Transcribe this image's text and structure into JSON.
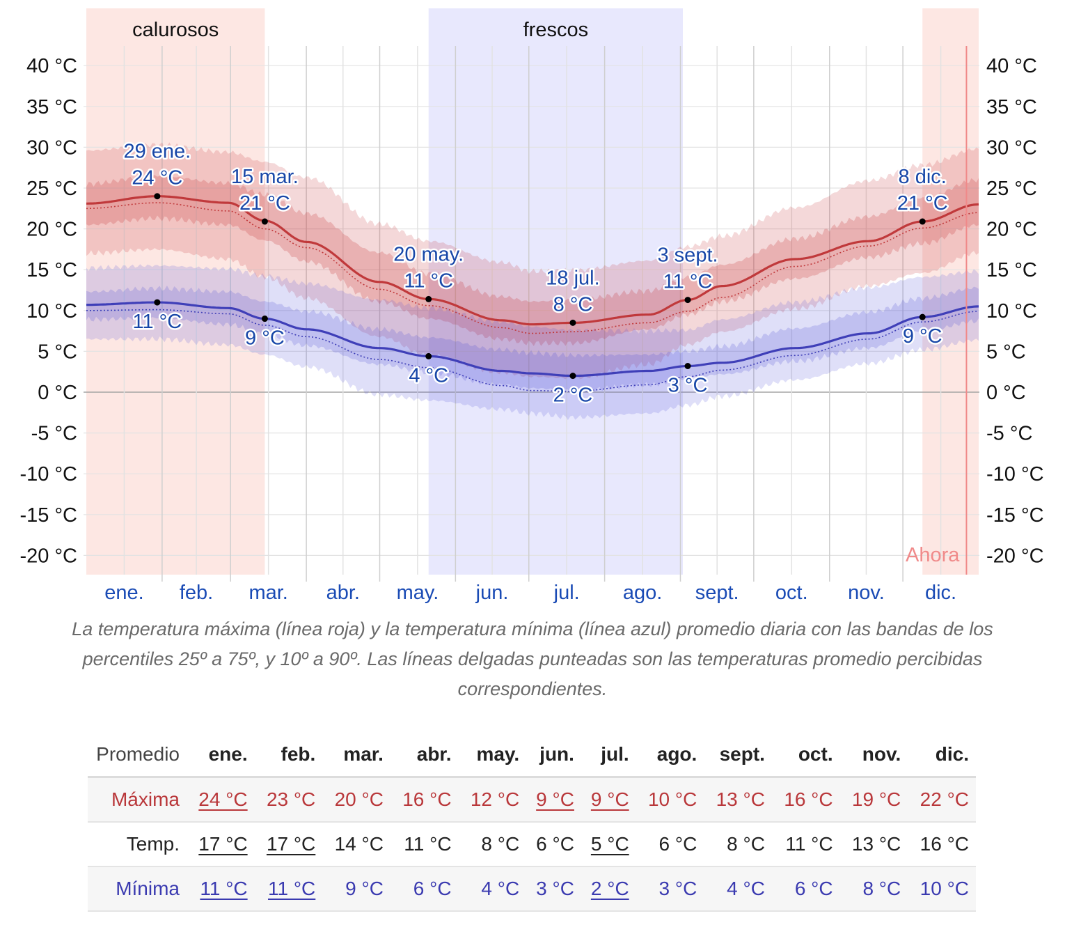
{
  "chart_data": {
    "type": "line",
    "y_axis": {
      "ticks": [
        40,
        35,
        30,
        25,
        20,
        15,
        10,
        5,
        0,
        -5,
        -10,
        -15,
        -20
      ],
      "unit": "°C",
      "range": [
        -22.5,
        40.6
      ]
    },
    "x_axis": {
      "months": [
        "ene.",
        "feb.",
        "mar.",
        "abr.",
        "may.",
        "jun.",
        "jul.",
        "ago.",
        "sept.",
        "oct.",
        "nov.",
        "dic."
      ]
    },
    "seasons": [
      {
        "label": "calurosos",
        "start_day": 0,
        "end_day": 73,
        "color": "#fde7e3"
      },
      {
        "label": "frescos",
        "start_day": 140,
        "end_day": 244,
        "color": "#e8e8fd"
      },
      {
        "label": "",
        "start_day": 342,
        "end_day": 365,
        "color": "#fde7e3"
      }
    ],
    "now": {
      "label": "Ahora",
      "day": 360,
      "color": "#f08a8a"
    },
    "grid": true,
    "series": [
      {
        "name": "máxima",
        "color": "#c0393b",
        "days": [
          0,
          29,
          58,
          73,
          90,
          120,
          140,
          170,
          182,
          199,
          230,
          246,
          260,
          290,
          320,
          342,
          365
        ],
        "values": [
          23.1,
          24,
          23.2,
          21,
          18.4,
          13.5,
          11.4,
          8.8,
          8.3,
          8.5,
          9.5,
          11.3,
          13,
          16.3,
          18.5,
          20.9,
          23.0
        ],
        "p10": [
          17,
          17.5,
          16.3,
          14.1,
          11.5,
          6.8,
          4.5,
          2.4,
          1.9,
          1.7,
          3.4,
          5.8,
          7.4,
          10.2,
          13,
          14.6,
          17.1
        ],
        "p25": [
          20.5,
          21.3,
          20.5,
          18.6,
          16,
          11.1,
          9.0,
          6.5,
          6.0,
          6.0,
          7.7,
          9.5,
          11.1,
          13.9,
          16.5,
          18.2,
          20.5
        ],
        "p75": [
          25.5,
          26.5,
          25.6,
          24.2,
          21.9,
          17.1,
          14.5,
          11.7,
          11.1,
          11.3,
          12.4,
          14.1,
          15.6,
          18.8,
          21.5,
          23.8,
          26
        ],
        "p90": [
          29.6,
          30.3,
          29.4,
          28.2,
          26.3,
          20.6,
          18.5,
          15.9,
          14.8,
          14.9,
          16.1,
          17.8,
          19.1,
          22.6,
          25.9,
          27.8,
          29.8
        ],
        "perceived": [
          22.5,
          23.2,
          22.2,
          20,
          17.7,
          12.6,
          10.6,
          7.9,
          7.2,
          7.4,
          8.5,
          9.9,
          11.6,
          15.4,
          17.9,
          20.1,
          22.0
        ]
      },
      {
        "name": "mínima",
        "color": "#3f3fb8",
        "days": [
          0,
          29,
          58,
          73,
          90,
          120,
          140,
          170,
          182,
          199,
          230,
          246,
          260,
          290,
          320,
          342,
          365
        ],
        "values": [
          10.7,
          11,
          10.3,
          9.0,
          7.7,
          5.4,
          4.4,
          2.6,
          2.3,
          2.0,
          2.6,
          3.2,
          3.6,
          5.4,
          7.2,
          9.2,
          10.5
        ],
        "p10": [
          6.5,
          6.5,
          5.8,
          4.6,
          3.1,
          -0.3,
          -1.0,
          -2.1,
          -2.6,
          -3.1,
          -2.6,
          -1.6,
          -0.5,
          1.5,
          3.5,
          5.2,
          6.4
        ],
        "p25": [
          8.9,
          9.1,
          8.3,
          7.1,
          5.7,
          3.4,
          2.4,
          0.9,
          0.5,
          0.2,
          0.9,
          1.7,
          2.2,
          3.8,
          5.4,
          7.5,
          8.7
        ],
        "p75": [
          12.3,
          12.7,
          12.3,
          11.1,
          9.9,
          7.7,
          6.7,
          5.2,
          4.8,
          4.5,
          4.6,
          5.0,
          5.6,
          7.8,
          9.8,
          11.5,
          12.8
        ],
        "p90": [
          15.2,
          15.5,
          15.1,
          14.2,
          13.3,
          11.3,
          10.3,
          8.6,
          8.0,
          7.6,
          7.5,
          7.6,
          8.9,
          11.0,
          12.8,
          14.1,
          14.8
        ],
        "perceived": [
          10.0,
          10.1,
          9.6,
          8.2,
          6.8,
          4.0,
          3.0,
          0.8,
          0.2,
          0.1,
          0.9,
          1.9,
          2.7,
          4.5,
          6.5,
          8.6,
          9.9
        ]
      }
    ],
    "annotations": [
      {
        "series": "máxima",
        "day": 29,
        "value": 24,
        "date": "29 ene.",
        "label": "24 °C",
        "pos": "above"
      },
      {
        "series": "máxima",
        "day": 73,
        "value": 20.9,
        "date": "15 mar.",
        "label": "21 °C",
        "pos": "above"
      },
      {
        "series": "máxima",
        "day": 140,
        "value": 11.4,
        "date": "20 may.",
        "label": "11 °C",
        "pos": "above"
      },
      {
        "series": "máxima",
        "day": 199,
        "value": 8.5,
        "date": "18 jul.",
        "label": "8 °C",
        "pos": "above"
      },
      {
        "series": "máxima",
        "day": 246,
        "value": 11.3,
        "date": "3 sept.",
        "label": "11 °C",
        "pos": "above"
      },
      {
        "series": "máxima",
        "day": 342,
        "value": 20.9,
        "date": "8 dic.",
        "label": "21 °C",
        "pos": "above"
      },
      {
        "series": "mínima",
        "day": 29,
        "value": 11,
        "date": "",
        "label": "11 °C",
        "pos": "below"
      },
      {
        "series": "mínima",
        "day": 73,
        "value": 9.0,
        "date": "",
        "label": "9 °C",
        "pos": "below"
      },
      {
        "series": "mínima",
        "day": 140,
        "value": 4.4,
        "date": "",
        "label": "4 °C",
        "pos": "below"
      },
      {
        "series": "mínima",
        "day": 199,
        "value": 2.0,
        "date": "",
        "label": "2 °C",
        "pos": "below"
      },
      {
        "series": "mínima",
        "day": 246,
        "value": 3.2,
        "date": "",
        "label": "3 °C",
        "pos": "below"
      },
      {
        "series": "mínima",
        "day": 342,
        "value": 9.2,
        "date": "",
        "label": "9 °C",
        "pos": "below"
      }
    ]
  },
  "caption": "La temperatura máxima (línea roja) y la temperatura mínima (línea azul) promedio diaria con las bandas de los percentiles 25º a 75º, y 10º a 90º. Las líneas delgadas punteadas son las temperaturas promedio percibidas correspondientes.",
  "table": {
    "header_label": "Promedio",
    "months": [
      "ene.",
      "feb.",
      "mar.",
      "abr.",
      "may.",
      "jun.",
      "jul.",
      "ago.",
      "sept.",
      "oct.",
      "nov.",
      "dic."
    ],
    "rows": [
      {
        "label": "Máxima",
        "cls": "rmax",
        "values": [
          "24 °C",
          "23 °C",
          "20 °C",
          "16 °C",
          "12 °C",
          "9 °C",
          "9 °C",
          "10 °C",
          "13 °C",
          "16 °C",
          "19 °C",
          "22 °C"
        ],
        "extremes": [
          0,
          5,
          6
        ]
      },
      {
        "label": "Temp.",
        "cls": "rtemp",
        "values": [
          "17 °C",
          "17 °C",
          "14 °C",
          "11 °C",
          "8 °C",
          "6 °C",
          "5 °C",
          "6 °C",
          "8 °C",
          "11 °C",
          "13 °C",
          "16 °C"
        ],
        "extremes": [
          0,
          1,
          6
        ]
      },
      {
        "label": "Mínima",
        "cls": "rmin",
        "values": [
          "11 °C",
          "11 °C",
          "9 °C",
          "6 °C",
          "4 °C",
          "3 °C",
          "2 °C",
          "3 °C",
          "4 °C",
          "6 °C",
          "8 °C",
          "10 °C"
        ],
        "extremes": [
          0,
          1,
          6
        ]
      }
    ]
  }
}
